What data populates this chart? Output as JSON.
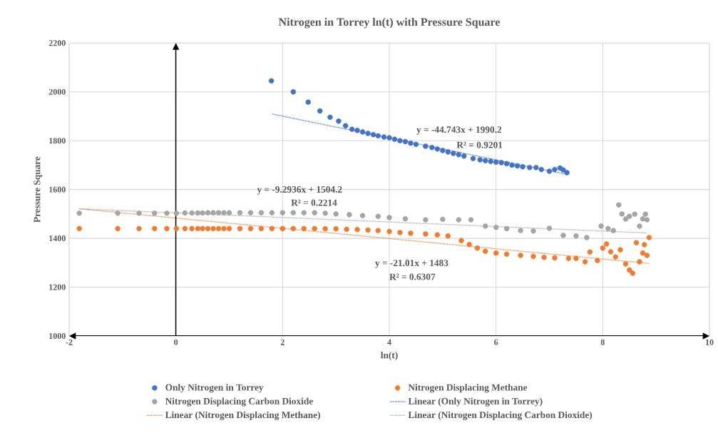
{
  "chart_data": {
    "type": "scatter",
    "title": "Nitrogen in Torrey ln(t) with Pressure Square",
    "xlabel": "ln(t)",
    "ylabel": "Pressure Square",
    "xlim": [
      -2,
      10
    ],
    "ylim": [
      1000,
      2200
    ],
    "xticks": [
      -2,
      0,
      2,
      4,
      6,
      8,
      10
    ],
    "yticks": [
      1000,
      1200,
      1400,
      1600,
      1800,
      2000,
      2200
    ],
    "grid": true,
    "legend": "bottom",
    "marker": "circle",
    "series": [
      {
        "name": "Only Nitrogen in Torrey",
        "color": "#4472c4",
        "x": [
          1.79,
          2.2,
          2.48,
          2.7,
          2.89,
          3.05,
          3.18,
          3.3,
          3.4,
          3.5,
          3.6,
          3.7,
          3.79,
          3.9,
          4.0,
          4.1,
          4.2,
          4.3,
          4.4,
          4.5,
          4.68,
          4.8,
          4.9,
          5.0,
          5.1,
          5.2,
          5.3,
          5.4,
          5.57,
          5.7,
          5.8,
          5.9,
          6.0,
          6.1,
          6.2,
          6.3,
          6.4,
          6.5,
          6.63,
          6.75,
          6.85,
          7.0,
          7.1,
          7.2,
          7.26,
          7.33
        ],
        "values": [
          2045,
          2000,
          1958,
          1922,
          1896,
          1880,
          1861,
          1847,
          1842,
          1836,
          1830,
          1825,
          1820,
          1815,
          1812,
          1806,
          1800,
          1796,
          1790,
          1785,
          1777,
          1772,
          1766,
          1760,
          1754,
          1748,
          1743,
          1737,
          1727,
          1722,
          1718,
          1715,
          1712,
          1710,
          1706,
          1700,
          1697,
          1693,
          1690,
          1690,
          1682,
          1675,
          1682,
          1688,
          1680,
          1669
        ]
      },
      {
        "name": "Nitrogen Displacing Methane",
        "color": "#ed7d31",
        "x": [
          -1.81,
          -1.09,
          -0.69,
          -0.4,
          -0.17,
          0.01,
          0.17,
          0.3,
          0.41,
          0.5,
          0.6,
          0.7,
          0.8,
          0.9,
          1.0,
          1.2,
          1.4,
          1.6,
          1.8,
          2.0,
          2.2,
          2.4,
          2.6,
          2.8,
          3.0,
          3.2,
          3.4,
          3.6,
          3.79,
          4.0,
          4.2,
          4.4,
          4.68,
          4.9,
          5.1,
          5.35,
          5.5,
          5.65,
          5.8,
          6.0,
          6.2,
          6.46,
          6.7,
          6.9,
          7.1,
          7.36,
          7.5,
          7.67,
          7.76,
          7.9,
          8.0,
          8.07,
          8.15,
          8.24,
          8.33,
          8.43,
          8.5,
          8.56,
          8.63,
          8.69,
          8.75,
          8.78,
          8.83,
          8.87
        ],
        "values": [
          1440,
          1440,
          1440,
          1440,
          1440,
          1440,
          1440,
          1440,
          1440,
          1440,
          1440,
          1440,
          1440,
          1440,
          1440,
          1440,
          1440,
          1440,
          1440,
          1440,
          1440,
          1440,
          1440,
          1439,
          1439,
          1437,
          1436,
          1434,
          1432,
          1428,
          1424,
          1421,
          1418,
          1414,
          1410,
          1391,
          1375,
          1360,
          1347,
          1340,
          1335,
          1330,
          1326,
          1322,
          1320,
          1318,
          1318,
          1304,
          1344,
          1309,
          1360,
          1377,
          1345,
          1324,
          1353,
          1295,
          1270,
          1257,
          1382,
          1304,
          1340,
          1374,
          1330,
          1403
        ]
      },
      {
        "name": "Nitrogen Displacing Carbon Dioxide",
        "color": "#a5a5a5",
        "x": [
          -1.81,
          -1.09,
          -0.69,
          -0.4,
          -0.17,
          0.01,
          0.17,
          0.3,
          0.41,
          0.5,
          0.6,
          0.7,
          0.8,
          0.9,
          1.0,
          1.2,
          1.4,
          1.6,
          1.8,
          2.0,
          2.2,
          2.4,
          2.6,
          2.8,
          3.0,
          3.25,
          3.5,
          3.79,
          4.0,
          4.3,
          4.68,
          5.0,
          5.3,
          5.53,
          5.8,
          6.0,
          6.2,
          6.46,
          6.7,
          7.0,
          7.26,
          7.5,
          7.7,
          7.97,
          8.1,
          8.2,
          8.3,
          8.36,
          8.43,
          8.5,
          8.6,
          8.69,
          8.75,
          8.8,
          8.83
        ],
        "values": [
          1503,
          1503,
          1503,
          1503,
          1503,
          1503,
          1504,
          1504,
          1504,
          1504,
          1505,
          1505,
          1505,
          1505,
          1505,
          1505,
          1505,
          1505,
          1505,
          1505,
          1505,
          1505,
          1505,
          1503,
          1500,
          1497,
          1493,
          1490,
          1485,
          1480,
          1476,
          1478,
          1476,
          1476,
          1450,
          1445,
          1440,
          1432,
          1430,
          1441,
          1412,
          1410,
          1403,
          1450,
          1440,
          1432,
          1537,
          1500,
          1479,
          1490,
          1499,
          1450,
          1480,
          1499,
          1476
        ]
      },
      {
        "name": "Linear (Only Nitrogen in Torrey)",
        "type": "line",
        "marker": "none",
        "line_style": "dotted",
        "color": "#4472c4",
        "x": [
          1.79,
          7.33
        ],
        "values": [
          1910,
          1662
        ]
      },
      {
        "name": "Linear (Nitrogen Displacing Methane)",
        "type": "line",
        "marker": "none",
        "line_style": "dotted",
        "color": "#ed7d31",
        "x": [
          -1.81,
          8.87
        ],
        "values": [
          1521,
          1297
        ]
      },
      {
        "name": "Linear (Nitrogen Displacing Carbon Dioxide)",
        "type": "line",
        "marker": "none",
        "line_style": "dotted",
        "color": "#a5a5a5",
        "x": [
          -1.81,
          8.83
        ],
        "values": [
          1521,
          1422
        ]
      }
    ],
    "ref_lines": [
      {
        "axis": "x",
        "value": 0,
        "color": "#000000"
      }
    ],
    "annotations": [
      "y = -44.743x + 1990.2",
      "R² = 0.9201",
      "y = -9.2936x + 1504.2",
      "R² = 0.2214",
      "y = -21.01x + 1483",
      "R² = 0.6307"
    ]
  }
}
